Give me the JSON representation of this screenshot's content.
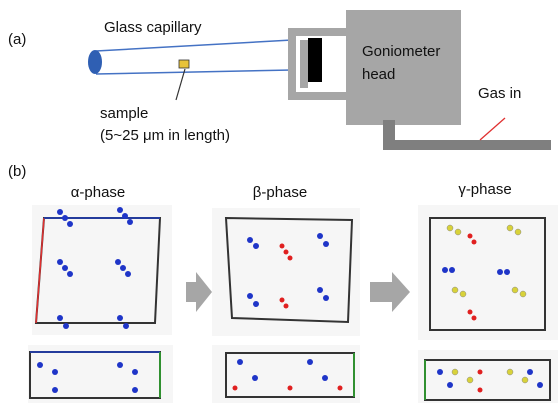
{
  "panel_a": {
    "label": "(a)",
    "capillary": "Glass capillary",
    "goniometer": [
      "Goniometer",
      "head"
    ],
    "sample": "sample",
    "sample_size": "(5~25 μm in length)",
    "gas": "Gas in"
  },
  "panel_b": {
    "label": "(b)",
    "phases": [
      "α-phase",
      "β-phase",
      "γ-phase"
    ]
  }
}
